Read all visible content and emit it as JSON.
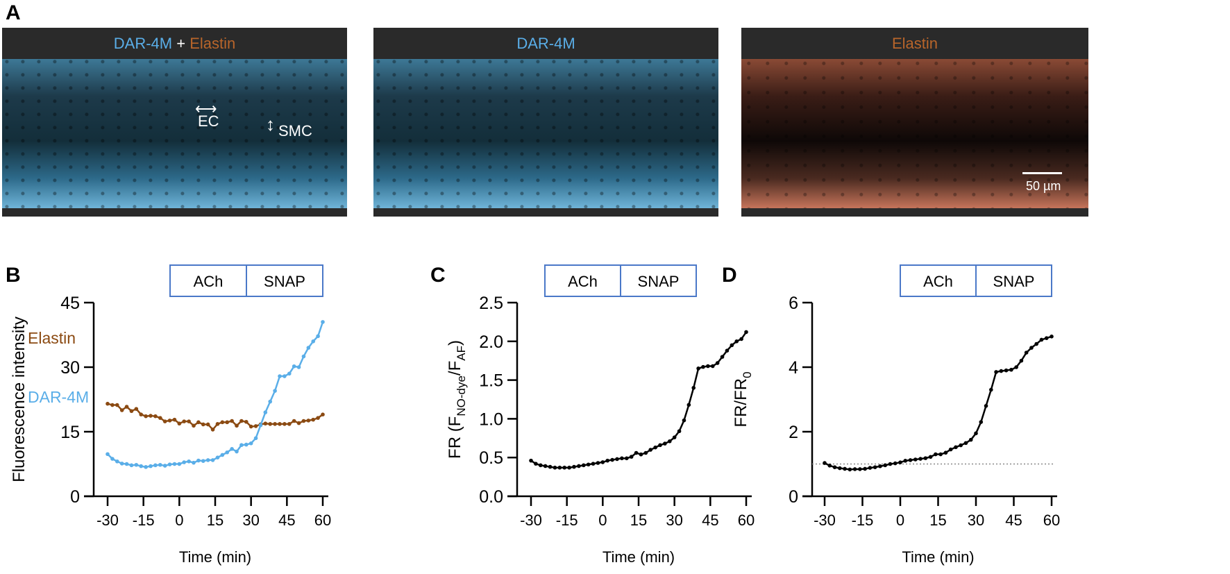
{
  "panels": {
    "a": "A",
    "b": "B",
    "c": "C",
    "d": "D"
  },
  "images": {
    "merge_title_a": "DAR-4M",
    "merge_plus": " + ",
    "merge_title_b": "Elastin",
    "dar_title": "DAR-4M",
    "elastin_title": "Elastin",
    "ec": "EC",
    "smc": "SMC",
    "scale": "50 µm"
  },
  "colors": {
    "dar": "#5aaee8",
    "elastin": "#8b4a12",
    "box": "#4a78c8"
  },
  "treatments": [
    "ACh",
    "SNAP"
  ],
  "chart_data": [
    {
      "type": "line",
      "panel": "B",
      "xlabel": "Time (min)",
      "ylabel": "Fluorescence intensity",
      "xlim": [
        -30,
        60
      ],
      "ylim": [
        0,
        45
      ],
      "xticks": [
        -30,
        -15,
        0,
        15,
        30,
        45,
        60
      ],
      "yticks": [
        0,
        15,
        30,
        45
      ],
      "x_start": -30,
      "x_step": 2,
      "series": [
        {
          "name": "Elastin",
          "color": "#8b4a12",
          "values": [
            21.5,
            21.2,
            21.2,
            20.0,
            20.8,
            19.8,
            20.3,
            19.0,
            18.6,
            18.7,
            18.6,
            18.2,
            17.4,
            17.6,
            17.8,
            16.9,
            17.4,
            17.4,
            16.4,
            17.2,
            16.7,
            16.7,
            15.5,
            16.8,
            17.2,
            17.2,
            17.5,
            16.4,
            17.5,
            17.3,
            16.2,
            16.3,
            16.7,
            16.9,
            16.8,
            16.8,
            16.8,
            16.8,
            16.8,
            17.5,
            17.0,
            17.5,
            17.6,
            17.8,
            18.2,
            19.0
          ]
        },
        {
          "name": "DAR-4M",
          "color": "#5aaee8",
          "values": [
            9.8,
            8.7,
            8.1,
            7.6,
            7.5,
            7.2,
            7.3,
            7.0,
            6.8,
            7.0,
            7.2,
            7.3,
            7.1,
            7.4,
            7.5,
            7.5,
            7.9,
            8.1,
            7.8,
            8.3,
            8.2,
            8.4,
            8.4,
            9.0,
            9.6,
            10.2,
            11.0,
            10.4,
            11.9,
            12.0,
            12.3,
            13.5,
            16.5,
            19.5,
            22.0,
            24.5,
            27.9,
            27.9,
            28.5,
            30.2,
            30.0,
            32.5,
            34.5,
            36.0,
            37.2,
            40.5
          ]
        }
      ]
    },
    {
      "type": "line",
      "panel": "C",
      "xlabel": "Time (min)",
      "ylabel_main": "FR (F",
      "ylabel_sub1": "NO-dye",
      "ylabel_mid": "/F",
      "ylabel_sub2": "AF",
      "ylabel_end": ")",
      "xlim": [
        -30,
        60
      ],
      "ylim": [
        0,
        2.5
      ],
      "xticks": [
        -30,
        -15,
        0,
        15,
        30,
        45,
        60
      ],
      "yticks": [
        "0.0",
        "0.5",
        "1.0",
        "1.5",
        "2.0",
        "2.5"
      ],
      "x_start": -30,
      "x_step": 2,
      "series": [
        {
          "name": "FR",
          "color": "#000000",
          "values": [
            0.46,
            0.42,
            0.4,
            0.39,
            0.38,
            0.37,
            0.37,
            0.37,
            0.37,
            0.38,
            0.39,
            0.4,
            0.41,
            0.42,
            0.43,
            0.44,
            0.46,
            0.47,
            0.48,
            0.49,
            0.49,
            0.51,
            0.56,
            0.54,
            0.56,
            0.6,
            0.63,
            0.66,
            0.68,
            0.71,
            0.76,
            0.84,
            0.98,
            1.18,
            1.4,
            1.65,
            1.67,
            1.68,
            1.68,
            1.72,
            1.8,
            1.88,
            1.95,
            2.0,
            2.03,
            2.12
          ]
        }
      ]
    },
    {
      "type": "line",
      "panel": "D",
      "xlabel": "Time (min)",
      "ylabel_main": "FR/FR",
      "ylabel_sub1": "0",
      "xlim": [
        -30,
        60
      ],
      "ylim": [
        0,
        6
      ],
      "xticks": [
        -30,
        -15,
        0,
        15,
        30,
        45,
        60
      ],
      "yticks": [
        0,
        2,
        4,
        6
      ],
      "reference_line": 1,
      "x_start": -30,
      "x_step": 2,
      "series": [
        {
          "name": "FR/FR0",
          "color": "#000000",
          "values": [
            1.03,
            0.95,
            0.9,
            0.87,
            0.85,
            0.83,
            0.84,
            0.84,
            0.85,
            0.88,
            0.9,
            0.93,
            0.96,
            1.0,
            1.02,
            1.05,
            1.1,
            1.12,
            1.14,
            1.16,
            1.18,
            1.22,
            1.3,
            1.3,
            1.35,
            1.45,
            1.52,
            1.58,
            1.65,
            1.75,
            1.95,
            2.3,
            2.8,
            3.3,
            3.85,
            3.88,
            3.9,
            3.92,
            4.0,
            4.2,
            4.45,
            4.6,
            4.72,
            4.85,
            4.9,
            4.95
          ]
        }
      ]
    }
  ]
}
